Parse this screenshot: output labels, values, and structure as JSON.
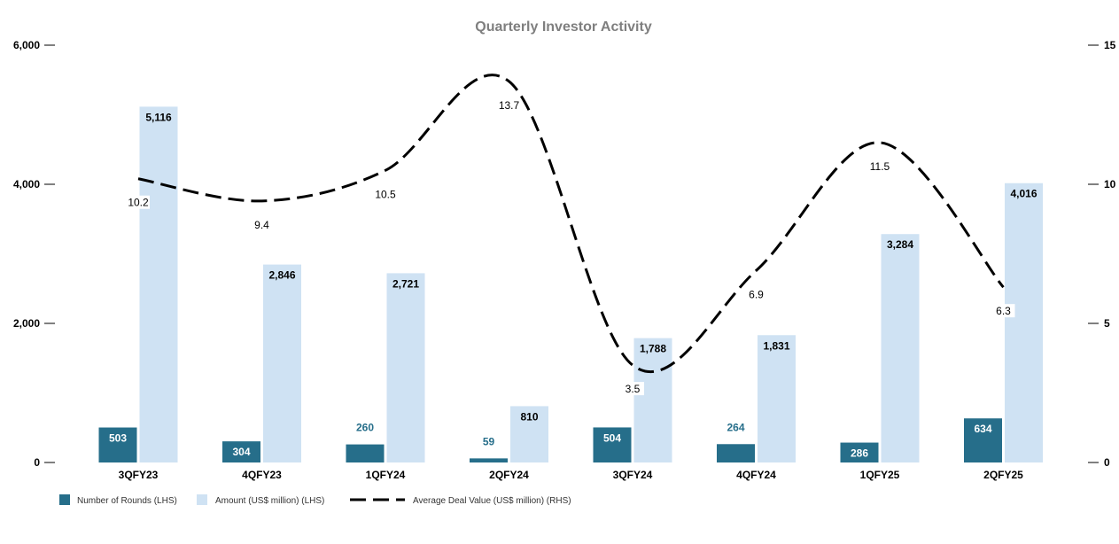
{
  "chart_data": {
    "type": "bar",
    "title": "Quarterly Investor Activity",
    "categories": [
      "3QFY23",
      "4QFY23",
      "1QFY24",
      "2QFY24",
      "3QFY24",
      "4QFY24",
      "1QFY25",
      "2QFY25"
    ],
    "series": [
      {
        "name": "Number of Rounds (LHS)",
        "type": "bar",
        "axis": "left",
        "color": "#266e8a",
        "values": [
          503,
          304,
          260,
          59,
          504,
          264,
          286,
          634
        ],
        "labels": [
          "503",
          "304",
          "260",
          "59",
          "504",
          "264",
          "286",
          "634"
        ]
      },
      {
        "name": "Amount (US$ million) (LHS)",
        "type": "bar",
        "axis": "left",
        "color": "#cfe2f3",
        "values": [
          5116,
          2846,
          2721,
          810,
          1788,
          1831,
          3284,
          4016
        ],
        "labels": [
          "5,116",
          "2,846",
          "2,721",
          "810",
          "1,788",
          "1,831",
          "3,284",
          "4,016"
        ]
      },
      {
        "name": "Average Deal Value (US$ million) (RHS)",
        "type": "line",
        "style": "dashed",
        "axis": "right",
        "color": "#000000",
        "values": [
          10.2,
          9.4,
          10.5,
          13.7,
          3.5,
          6.9,
          11.5,
          6.3
        ],
        "labels": [
          "10.2",
          "9.4",
          "10.5",
          "13.7",
          "3.5",
          "6.9",
          "11.5",
          "6.3"
        ]
      }
    ],
    "y_left": {
      "min": 0,
      "max": 6000,
      "ticks": [
        0,
        2000,
        4000,
        6000
      ],
      "tick_labels": [
        "0",
        "2,000",
        "4,000",
        "6,000"
      ]
    },
    "y_right": {
      "min": 0,
      "max": 15,
      "ticks": [
        0,
        5,
        10,
        15
      ],
      "tick_labels": [
        "0",
        "5",
        "10",
        "15"
      ]
    },
    "grid": false,
    "legend_position": "bottom-left",
    "label_on_light_color": "#266e8a"
  }
}
